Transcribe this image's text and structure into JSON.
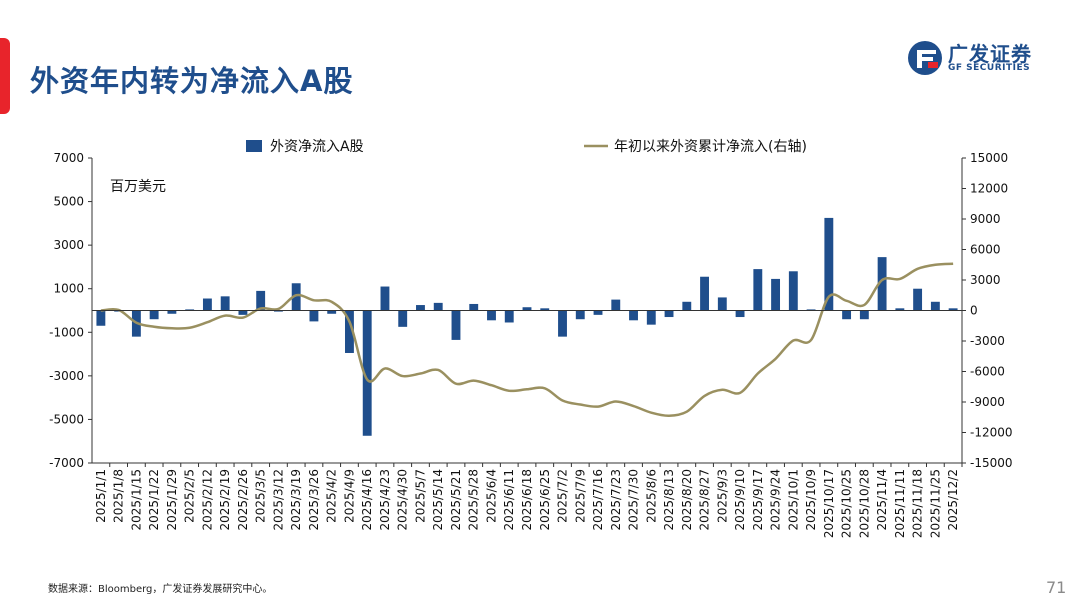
{
  "slide": {
    "title": "外资年内转为净流入A股",
    "source": "数据来源：Bloomberg，广发证券发展研究中心。",
    "page_number": "71"
  },
  "logo": {
    "cn": "广发证券",
    "en": "GF SECURITIES",
    "brand_color": "#1f4e8c",
    "accent_color": "#e8242b"
  },
  "chart_data": {
    "type": "bar",
    "unit_label": "百万美元",
    "legend": [
      "外资净流入A股",
      "年初以来外资累计净流入(右轴)"
    ],
    "colors": {
      "bar": "#1f4e8c",
      "line": "#9a9060"
    },
    "ylim_left": [
      -7000,
      7000
    ],
    "yticks_left": [
      -7000,
      -5000,
      -3000,
      -1000,
      1000,
      3000,
      5000,
      7000
    ],
    "ylim_right": [
      -15000,
      15000
    ],
    "yticks_right": [
      -15000,
      -12000,
      -9000,
      -6000,
      -3000,
      0,
      3000,
      6000,
      9000,
      12000,
      15000
    ],
    "x_tick_labels": [
      "2025/1/1",
      "2025/1/8",
      "2025/1/15",
      "2025/1/22",
      "2025/1/29",
      "2025/2/5",
      "2025/2/12",
      "2025/2/19",
      "2025/2/26",
      "2025/3/5",
      "2025/3/12",
      "2025/3/19",
      "2025/3/26",
      "2025/4/2",
      "2025/4/9",
      "2025/4/16",
      "2025/4/23",
      "2025/4/30",
      "2025/5/7",
      "2025/5/14",
      "2025/5/21",
      "2025/5/28",
      "2025/6/4",
      "2025/6/11",
      "2025/6/18",
      "2025/6/25",
      "2025/7/2",
      "2025/7/9",
      "2025/7/16",
      "2025/7/23",
      "2025/7/30",
      "2025/8/6",
      "2025/8/13",
      "2025/8/20",
      "2025/8/27",
      "2025/9/3",
      "2025/9/10",
      "2025/9/17",
      "2025/9/24",
      "2025/10/1",
      "2025/10/9",
      "2025/10/17",
      "2025/10/25",
      "2025/10/28",
      "2025/11/4",
      "2025/11/11",
      "2025/11/18",
      "2025/11/25",
      "2025/12/2"
    ],
    "bar_values": [
      -700,
      -50,
      -1200,
      -400,
      -150,
      50,
      550,
      650,
      -200,
      900,
      -50,
      1250,
      -500,
      -150,
      -1950,
      -5750,
      1100,
      -750,
      250,
      350,
      -1350,
      300,
      -450,
      -550,
      150,
      100,
      -1200,
      -400,
      -200,
      500,
      -450,
      -650,
      -300,
      400,
      1550,
      600,
      -300,
      1900,
      1450,
      1800,
      50,
      4250,
      -400,
      -400,
      2450,
      100,
      1000,
      400,
      100
    ],
    "cumulative_values": [
      0,
      50,
      -1200,
      -1600,
      -1750,
      -1700,
      -1150,
      -500,
      -700,
      200,
      150,
      1500,
      1000,
      850,
      -1100,
      -6800,
      -5700,
      -6450,
      -6200,
      -5850,
      -7200,
      -6900,
      -7350,
      -7900,
      -7750,
      -7650,
      -8850,
      -9250,
      -9450,
      -8950,
      -9400,
      -10050,
      -10350,
      -9950,
      -8400,
      -7800,
      -8100,
      -6200,
      -4750,
      -2950,
      -2900,
      1350,
      950,
      550,
      3000,
      3100,
      4100,
      4500,
      4600
    ]
  }
}
